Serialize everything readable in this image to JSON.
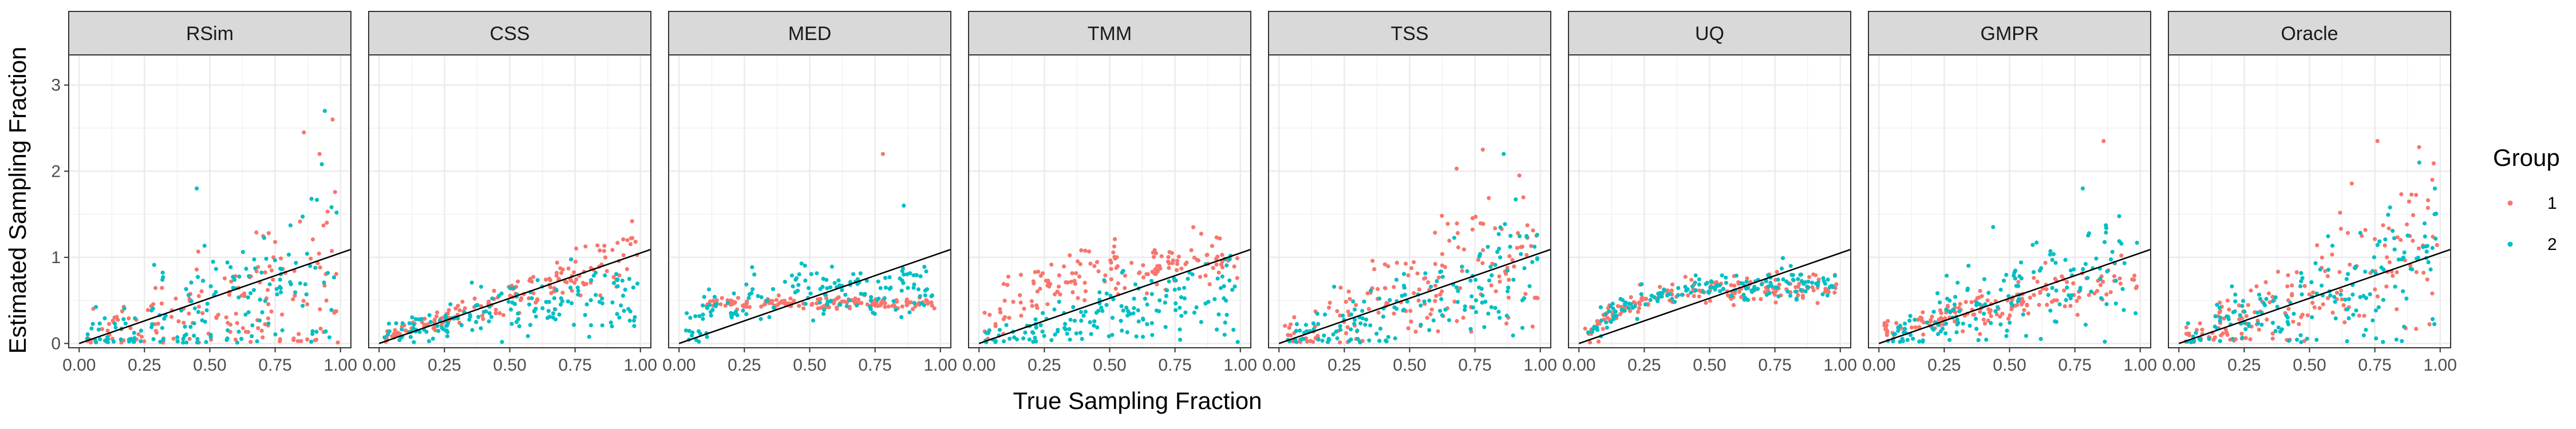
{
  "chart_data": {
    "type": "scatter",
    "facets": [
      "RSim",
      "CSS",
      "MED",
      "TMM",
      "TSS",
      "UQ",
      "GMPR",
      "Oracle"
    ],
    "xlabel": "True Sampling Fraction",
    "ylabel": "Estimated Sampling Fraction",
    "xlim": [
      0,
      1
    ],
    "ylim": [
      -0.05,
      3.35
    ],
    "x_ticks": [
      "0.00",
      "0.25",
      "0.50",
      "0.75",
      "1.00"
    ],
    "x_tick_values": [
      0,
      0.25,
      0.5,
      0.75,
      1.0
    ],
    "y_ticks": [
      "0",
      "1",
      "2",
      "3"
    ],
    "y_tick_values": [
      0,
      1,
      2,
      3
    ],
    "grid": true,
    "reference_line": {
      "intercept": 0,
      "slope": 1.05
    },
    "legend": {
      "title": "Group",
      "position": "right",
      "entries": [
        {
          "label": "1",
          "color": "#F8766D"
        },
        {
          "label": "2",
          "color": "#00BFC4"
        }
      ]
    },
    "series": [
      {
        "name": "1",
        "color": "#F8766D"
      },
      {
        "name": "2",
        "color": "#00BFC4"
      }
    ],
    "panels": [
      {
        "facet": "RSim",
        "group1": {
          "trend": "linear",
          "slope": 0.85,
          "intercept": 0.0,
          "spread": 0.45,
          "n": 160
        },
        "group2": {
          "trend": "linear",
          "slope": 0.75,
          "intercept": 0.05,
          "spread": 0.45,
          "n": 160
        },
        "outliers": [
          [
            0.86,
            2.45
          ],
          [
            0.94,
            2.7
          ],
          [
            0.97,
            2.6
          ],
          [
            0.45,
            1.8
          ],
          [
            0.92,
            2.2
          ]
        ]
      },
      {
        "facet": "CSS",
        "group1": {
          "trend": "linear",
          "slope": 1.0,
          "intercept": 0.05,
          "spread": 0.12,
          "n": 160
        },
        "group2": {
          "trend": "linear",
          "slope": 0.55,
          "intercept": 0.1,
          "spread": 0.18,
          "n": 160
        },
        "outliers": [
          [
            0.95,
            1.2
          ]
        ]
      },
      {
        "facet": "MED",
        "group1": {
          "trend": "flat",
          "value": 0.47,
          "x_from": 0.1,
          "spread": 0.03,
          "n": 160
        },
        "group2": {
          "trend": "saturating",
          "max": 0.6,
          "rate": 7,
          "spread": 0.15,
          "n": 160
        },
        "outliers": [
          [
            0.78,
            2.2
          ],
          [
            0.86,
            1.6
          ]
        ]
      },
      {
        "facet": "TMM",
        "group1": {
          "trend": "saturating",
          "max": 0.95,
          "rate": 5,
          "spread": 0.15,
          "n": 160
        },
        "group2": {
          "trend": "linear",
          "slope": 0.55,
          "intercept": 0.05,
          "spread": 0.25,
          "n": 160
        },
        "outliers": [
          [
            0.82,
            1.35
          ]
        ]
      },
      {
        "facet": "TSS",
        "group1": {
          "trend": "linear",
          "slope": 1.2,
          "intercept": 0.0,
          "spread": 0.4,
          "n": 160
        },
        "group2": {
          "trend": "linear",
          "slope": 0.95,
          "intercept": 0.0,
          "spread": 0.28,
          "n": 160
        },
        "outliers": [
          [
            0.78,
            2.25
          ],
          [
            0.86,
            2.2
          ],
          [
            0.92,
            1.95
          ]
        ]
      },
      {
        "facet": "UQ",
        "group1": {
          "trend": "saturating",
          "max": 0.65,
          "rate": 6,
          "spread": 0.08,
          "n": 160
        },
        "group2": {
          "trend": "saturating",
          "max": 0.7,
          "rate": 5,
          "spread": 0.08,
          "n": 160
        },
        "outliers": []
      },
      {
        "facet": "GMPR",
        "group1": {
          "trend": "linear",
          "slope": 0.6,
          "intercept": 0.15,
          "spread": 0.15,
          "n": 160
        },
        "group2": {
          "trend": "linear",
          "slope": 0.95,
          "intercept": 0.05,
          "spread": 0.32,
          "n": 160
        },
        "outliers": [
          [
            0.86,
            2.35
          ],
          [
            0.78,
            1.8
          ]
        ]
      },
      {
        "facet": "Oracle",
        "group1": {
          "trend": "linear",
          "slope": 1.15,
          "intercept": 0.0,
          "spread": 0.4,
          "n": 160
        },
        "group2": {
          "trend": "linear",
          "slope": 1.0,
          "intercept": 0.0,
          "spread": 0.35,
          "n": 160
        },
        "outliers": [
          [
            0.76,
            2.35
          ],
          [
            0.92,
            2.1
          ],
          [
            0.97,
            1.9
          ]
        ]
      }
    ]
  }
}
